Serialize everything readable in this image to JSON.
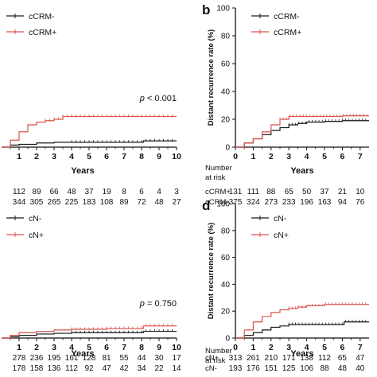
{
  "colors": {
    "black_series": "#1a1a1a",
    "red_series": "#d9534f"
  },
  "chart_data": [
    {
      "id": "a",
      "panel_letter": "",
      "type": "line",
      "subtype": "kaplan-meier",
      "ylabel": "",
      "xlabel": "Years",
      "xlim": [
        0,
        10
      ],
      "ylim": [
        0,
        100
      ],
      "x_ticks": [
        "1",
        "2",
        "3",
        "4",
        "5",
        "6",
        "7",
        "8",
        "9",
        "10"
      ],
      "y_ticks": [],
      "legend": {
        "placement": "top-left",
        "entries": [
          "cCRM-",
          "cCRM+"
        ]
      },
      "p_prefix": "p",
      "p_value_text": " < 0.001",
      "series": [
        {
          "name": "cCRM-",
          "color": "#1a1a1a",
          "points": [
            [
              0,
              0
            ],
            [
              0.5,
              1.5
            ],
            [
              1,
              2
            ],
            [
              2,
              3
            ],
            [
              3,
              3.5
            ],
            [
              4,
              3.5
            ],
            [
              5,
              3.5
            ],
            [
              8,
              3.5
            ],
            [
              8.1,
              4.5
            ],
            [
              10,
              4.5
            ]
          ]
        },
        {
          "name": "cCRM+",
          "color": "#d9534f",
          "points": [
            [
              0,
              0
            ],
            [
              0.5,
              5
            ],
            [
              1,
              11
            ],
            [
              1.5,
              16
            ],
            [
              2,
              18
            ],
            [
              2.5,
              19
            ],
            [
              3,
              20
            ],
            [
              3.5,
              22
            ],
            [
              4,
              22
            ],
            [
              10,
              22
            ]
          ]
        }
      ],
      "risk_table": {
        "header_label": "",
        "x": [
          1,
          2,
          3,
          4,
          5,
          6,
          7,
          8,
          9,
          10
        ],
        "rows": [
          {
            "label": "",
            "values": [
              "112",
              "89",
              "66",
              "48",
              "37",
              "19",
              "8",
              "6",
              "4",
              "3"
            ]
          },
          {
            "label": "",
            "values": [
              "344",
              "305",
              "265",
              "225",
              "183",
              "108",
              "89",
              "72",
              "48",
              "27"
            ]
          }
        ]
      }
    },
    {
      "id": "b",
      "panel_letter": "b",
      "type": "line",
      "subtype": "kaplan-meier",
      "ylabel": "Distant recurrence rate (%)",
      "xlabel": "Years",
      "xlim": [
        0,
        7.5
      ],
      "ylim": [
        0,
        100
      ],
      "x_ticks": [
        "0",
        "1",
        "2",
        "3",
        "4",
        "5",
        "6",
        "7"
      ],
      "y_ticks": [
        "0",
        "20",
        "40",
        "60",
        "80",
        "100"
      ],
      "legend": {
        "placement": "top-left",
        "entries": [
          "cCRM-",
          "cCRM+"
        ]
      },
      "p_prefix": "",
      "p_value_text": "",
      "series": [
        {
          "name": "cCRM-",
          "color": "#1a1a1a",
          "points": [
            [
              0,
              0
            ],
            [
              0.5,
              3
            ],
            [
              1,
              6
            ],
            [
              1.5,
              9
            ],
            [
              2,
              12
            ],
            [
              2.5,
              14
            ],
            [
              3,
              16
            ],
            [
              3.5,
              17
            ],
            [
              4,
              18
            ],
            [
              5,
              18.5
            ],
            [
              6,
              19
            ],
            [
              7.5,
              19
            ]
          ]
        },
        {
          "name": "cCRM+",
          "color": "#d9534f",
          "points": [
            [
              0,
              0
            ],
            [
              0.5,
              3
            ],
            [
              1,
              6
            ],
            [
              1.5,
              11
            ],
            [
              2,
              16
            ],
            [
              2.5,
              20
            ],
            [
              3,
              22
            ],
            [
              4,
              22
            ],
            [
              5,
              22
            ],
            [
              6,
              22.5
            ],
            [
              7.5,
              22.5
            ]
          ]
        }
      ],
      "risk_table": {
        "header_label": "Number\nat risk",
        "x": [
          0,
          1,
          2,
          3,
          4,
          5,
          6,
          7
        ],
        "rows": [
          {
            "label": "cCRM+",
            "values": [
              "131",
              "111",
              "88",
              "65",
              "50",
              "37",
              "21",
              "10"
            ]
          },
          {
            "label": "cCRM-",
            "values": [
              "375",
              "324",
              "273",
              "233",
              "196",
              "163",
              "94",
              "76"
            ]
          }
        ]
      }
    },
    {
      "id": "c",
      "panel_letter": "",
      "type": "line",
      "subtype": "kaplan-meier",
      "ylabel": "",
      "xlabel": "Years",
      "xlim": [
        0,
        10
      ],
      "ylim": [
        0,
        100
      ],
      "x_ticks": [
        "1",
        "2",
        "3",
        "4",
        "5",
        "6",
        "7",
        "8",
        "9",
        "10"
      ],
      "y_ticks": [],
      "legend": {
        "placement": "top-left",
        "entries": [
          "cN-",
          "cN+"
        ]
      },
      "p_prefix": "p",
      "p_value_text": " = 0.750",
      "series": [
        {
          "name": "cN-",
          "color": "#1a1a1a",
          "points": [
            [
              0,
              0
            ],
            [
              0.5,
              1
            ],
            [
              1,
              2
            ],
            [
              2,
              3
            ],
            [
              3,
              3.5
            ],
            [
              4,
              4
            ],
            [
              6,
              4
            ],
            [
              8,
              4
            ],
            [
              8.1,
              5
            ],
            [
              10,
              5
            ]
          ]
        },
        {
          "name": "cN+",
          "color": "#d9534f",
          "points": [
            [
              0,
              0
            ],
            [
              0.5,
              2
            ],
            [
              1,
              4
            ],
            [
              2,
              5
            ],
            [
              3,
              6
            ],
            [
              4,
              6.5
            ],
            [
              6,
              7
            ],
            [
              8,
              7
            ],
            [
              8.1,
              9
            ],
            [
              10,
              9
            ]
          ]
        }
      ],
      "risk_table": {
        "header_label": "",
        "x": [
          1,
          2,
          3,
          4,
          5,
          6,
          7,
          8,
          9,
          10
        ],
        "rows": [
          {
            "label": "",
            "values": [
              "278",
              "236",
              "195",
              "161",
              "128",
              "81",
              "55",
              "44",
              "30",
              "17"
            ]
          },
          {
            "label": "",
            "values": [
              "178",
              "158",
              "136",
              "112",
              "92",
              "47",
              "42",
              "34",
              "22",
              "14"
            ]
          }
        ]
      }
    },
    {
      "id": "d",
      "panel_letter": "d",
      "type": "line",
      "subtype": "kaplan-meier",
      "ylabel": "Distant recurrence rate (%)",
      "xlabel": "Years",
      "xlim": [
        0,
        7.5
      ],
      "ylim": [
        0,
        100
      ],
      "x_ticks": [
        "0",
        "1",
        "2",
        "3",
        "4",
        "5",
        "6",
        "7"
      ],
      "y_ticks": [
        "0",
        "20",
        "40",
        "60",
        "80",
        "100"
      ],
      "legend": {
        "placement": "top-left",
        "entries": [
          "cN-",
          "cN+"
        ]
      },
      "p_prefix": "",
      "p_value_text": "",
      "series": [
        {
          "name": "cN-",
          "color": "#1a1a1a",
          "points": [
            [
              0,
              0
            ],
            [
              0.5,
              2
            ],
            [
              1,
              4
            ],
            [
              1.5,
              6
            ],
            [
              2,
              8
            ],
            [
              2.5,
              9
            ],
            [
              3,
              10
            ],
            [
              4,
              10
            ],
            [
              5,
              10
            ],
            [
              6,
              10
            ],
            [
              6.1,
              12
            ],
            [
              7.5,
              12
            ]
          ]
        },
        {
          "name": "cN+",
          "color": "#d9534f",
          "points": [
            [
              0,
              0
            ],
            [
              0.5,
              6
            ],
            [
              1,
              12
            ],
            [
              1.5,
              16
            ],
            [
              2,
              19
            ],
            [
              2.5,
              21
            ],
            [
              3,
              22
            ],
            [
              3.5,
              23
            ],
            [
              4,
              24
            ],
            [
              5,
              25
            ],
            [
              6,
              25
            ],
            [
              7.5,
              25
            ]
          ]
        }
      ],
      "risk_table": {
        "header_label": "Number\nat risk",
        "x": [
          0,
          1,
          2,
          3,
          4,
          5,
          6,
          7
        ],
        "rows": [
          {
            "label": "cN+",
            "values": [
              "313",
              "261",
              "210",
              "171",
              "138",
              "112",
              "65",
              "47"
            ]
          },
          {
            "label": "cN-",
            "values": [
              "193",
              "176",
              "151",
              "125",
              "106",
              "88",
              "48",
              "40"
            ]
          }
        ]
      }
    }
  ]
}
